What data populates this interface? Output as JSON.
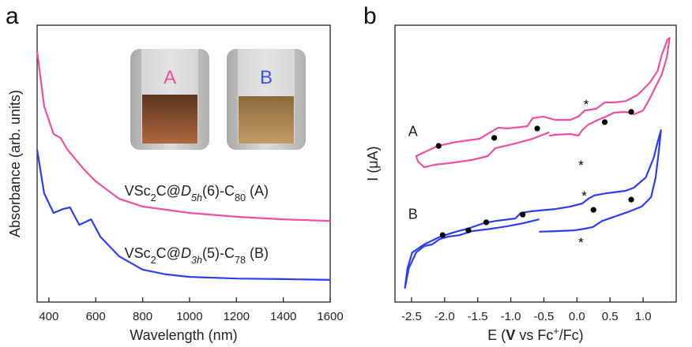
{
  "chart_data": [
    {
      "type": "line",
      "panel_label": "a",
      "xlabel": "Wavelength (nm)",
      "ylabel": "Absorbance (arb. units)",
      "xlim": [
        350,
        1600
      ],
      "xticks": [
        400,
        600,
        800,
        1000,
        1200,
        1400,
        1600
      ],
      "ylim": [
        0,
        1
      ],
      "inset_labels": [
        {
          "text": "A",
          "color": "#ee4fa0"
        },
        {
          "text": "B",
          "color": "#3b4ff0"
        }
      ],
      "series": [
        {
          "color": "#ee4fa0",
          "label": [
            {
              "text": "VSc"
            },
            {
              "text": "2",
              "style": "sub"
            },
            {
              "text": "C@"
            },
            {
              "text": "D",
              "style": "italic"
            },
            {
              "text": "5h",
              "style": "italic-sub"
            },
            {
              "text": "(6)-C"
            },
            {
              "text": "80",
              "style": "sub"
            },
            {
              "text": " (A)"
            }
          ],
          "label_at": [
            1030,
            0.385
          ],
          "x": [
            350,
            380,
            420,
            450,
            480,
            550,
            600,
            700,
            800,
            1000,
            1200,
            1400,
            1600
          ],
          "values": [
            0.906,
            0.707,
            0.607,
            0.593,
            0.55,
            0.479,
            0.436,
            0.373,
            0.345,
            0.322,
            0.308,
            0.299,
            0.293
          ]
        },
        {
          "color": "#2b3ff0",
          "label": [
            {
              "text": "VSc"
            },
            {
              "text": "2",
              "style": "sub"
            },
            {
              "text": "C@"
            },
            {
              "text": "D",
              "style": "italic"
            },
            {
              "text": "3h",
              "style": "italic-sub"
            },
            {
              "text": "(5)-C"
            },
            {
              "text": "78",
              "style": "sub"
            },
            {
              "text": " (B)"
            }
          ],
          "label_at": [
            1030,
            0.16
          ],
          "x": [
            350,
            380,
            420,
            460,
            490,
            530,
            580,
            620,
            700,
            800,
            900,
            1000,
            1200,
            1400,
            1600
          ],
          "values": [
            0.55,
            0.393,
            0.322,
            0.336,
            0.342,
            0.279,
            0.299,
            0.236,
            0.165,
            0.117,
            0.1,
            0.091,
            0.085,
            0.083,
            0.08
          ]
        }
      ]
    },
    {
      "type": "line",
      "panel_label": "b",
      "xlabel": [
        {
          "text": "E ("
        },
        {
          "text": "V",
          "style": "bold"
        },
        {
          "text": " vs Fc"
        },
        {
          "text": "+",
          "style": "sup"
        },
        {
          "text": "/Fc)"
        }
      ],
      "ylabel": "I (μA)",
      "xlim": [
        -2.75,
        1.5
      ],
      "xticks": [
        -2.5,
        {
          "value": -2,
          "label": "-2.0"
        },
        -1.5,
        {
          "value": -1,
          "label": "-1.0"
        },
        -0.5,
        {
          "value": 0,
          "label": "0.0"
        },
        0.5,
        {
          "value": 1,
          "label": "1.0"
        }
      ],
      "ylim": [
        0,
        1
      ],
      "series": [
        {
          "color": "#ee4fa0",
          "label": [
            {
              "text": "A"
            }
          ],
          "label_at": [
            -2.55,
            0.6
          ],
          "x": [
            -0.42,
            -0.67,
            -0.93,
            -1.23,
            -1.35,
            -1.59,
            -1.95,
            -2.15,
            -2.31,
            -2.4,
            -2.43,
            -2.31,
            -2.1,
            -1.83,
            -1.47,
            -1.31,
            -1.19,
            -1.05,
            -0.75,
            -0.67,
            -0.51,
            -0.33,
            -0.1,
            0.02,
            0.12,
            0.29,
            0.42,
            0.56,
            0.74,
            0.92,
            1.1,
            1.22,
            1.28,
            1.37,
            1.4,
            1.36,
            1.28,
            1.19,
            1.1,
            1.0,
            0.86,
            0.74,
            0.56,
            0.44,
            0.32,
            0.17,
            0.08,
            0.02,
            -0.1,
            -0.33,
            -0.42
          ],
          "values": [
            0.613,
            0.59,
            0.573,
            0.556,
            0.527,
            0.513,
            0.501,
            0.496,
            0.487,
            0.507,
            0.527,
            0.541,
            0.564,
            0.578,
            0.59,
            0.613,
            0.63,
            0.627,
            0.635,
            0.664,
            0.67,
            0.658,
            0.658,
            0.67,
            0.692,
            0.698,
            0.721,
            0.721,
            0.726,
            0.749,
            0.792,
            0.835,
            0.892,
            0.949,
            0.954,
            0.886,
            0.821,
            0.778,
            0.735,
            0.692,
            0.678,
            0.687,
            0.684,
            0.67,
            0.658,
            0.641,
            0.621,
            0.601,
            0.607,
            0.604,
            0.601
          ]
        },
        {
          "color": "#2b3ff0",
          "label": [
            {
              "text": "B"
            }
          ],
          "label_at": [
            -2.55,
            0.3
          ],
          "x": [
            -0.57,
            -0.81,
            -1.05,
            -1.29,
            -1.59,
            -1.77,
            -1.95,
            -2.07,
            -2.19,
            -2.31,
            -2.43,
            -2.54,
            -2.6,
            -2.56,
            -2.49,
            -2.31,
            -2.07,
            -1.83,
            -1.65,
            -1.41,
            -1.23,
            -0.93,
            -0.85,
            -0.69,
            -0.33,
            -0.1,
            0.08,
            0.17,
            0.26,
            0.44,
            0.74,
            0.86,
            1.04,
            1.16,
            1.22,
            1.27,
            1.24,
            1.19,
            1.12,
            0.98,
            0.8,
            0.56,
            0.38,
            0.24,
            0.12,
            -0.04,
            -0.33,
            -0.57
          ],
          "values": [
            0.299,
            0.285,
            0.274,
            0.265,
            0.256,
            0.242,
            0.236,
            0.228,
            0.208,
            0.202,
            0.179,
            0.123,
            0.051,
            0.123,
            0.179,
            0.208,
            0.236,
            0.254,
            0.265,
            0.285,
            0.293,
            0.302,
            0.322,
            0.328,
            0.336,
            0.345,
            0.356,
            0.373,
            0.385,
            0.393,
            0.402,
            0.413,
            0.45,
            0.521,
            0.578,
            0.621,
            0.55,
            0.45,
            0.379,
            0.345,
            0.328,
            0.308,
            0.293,
            0.271,
            0.265,
            0.259,
            0.256,
            0.254
          ]
        }
      ],
      "markers": {
        "x": [
          -2.09,
          -1.25,
          -0.6,
          0.42,
          0.82,
          -2.03,
          -1.64,
          -1.37,
          -0.82,
          0.25,
          0.82
        ],
        "y": [
          0.564,
          0.593,
          0.627,
          0.65,
          0.687,
          0.242,
          0.259,
          0.288,
          0.316,
          0.333,
          0.37
        ]
      },
      "annotations": [
        {
          "text": "*",
          "x": 0.14,
          "y": 0.721
        },
        {
          "text": "*",
          "x": 0.06,
          "y": 0.501
        },
        {
          "text": "*",
          "x": 0.11,
          "y": 0.39
        },
        {
          "text": "*",
          "x": 0.06,
          "y": 0.222
        }
      ]
    }
  ]
}
